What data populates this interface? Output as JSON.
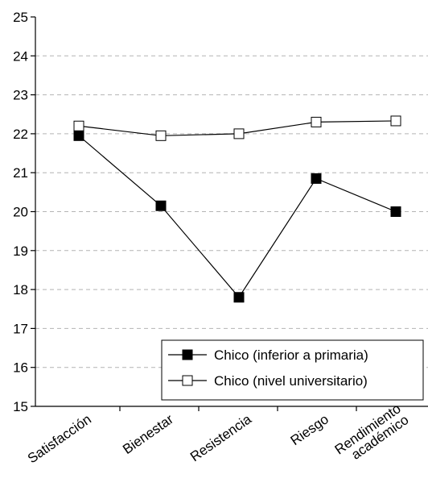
{
  "chart_data": {
    "type": "line",
    "title": "",
    "xlabel": "",
    "ylabel": "",
    "categories": [
      "Satisfacción",
      "Bienestar",
      "Resistencia",
      "Riesgo",
      [
        "Rendimiento",
        "académico"
      ]
    ],
    "category_labels": [
      "Satisfacción",
      "Bienestar",
      "Resistencia",
      "Riesgo",
      "Rendimiento",
      "académico"
    ],
    "ylim": [
      15,
      25
    ],
    "yticks": [
      "15",
      "16",
      "17",
      "18",
      "19",
      "20",
      "21",
      "22",
      "23",
      "24",
      "25"
    ],
    "grid": "horizontal-dashed",
    "legend_position": "bottom-right",
    "series": [
      {
        "name": "Chico (inferior a primaria)",
        "marker": "filled-square",
        "color": "#000000",
        "values": [
          21.95,
          20.15,
          17.8,
          20.85,
          20.0
        ]
      },
      {
        "name": "Chico (nivel universitario)",
        "marker": "open-square",
        "color": "#000000",
        "values": [
          22.2,
          21.95,
          22.0,
          22.3,
          22.33
        ]
      }
    ]
  }
}
